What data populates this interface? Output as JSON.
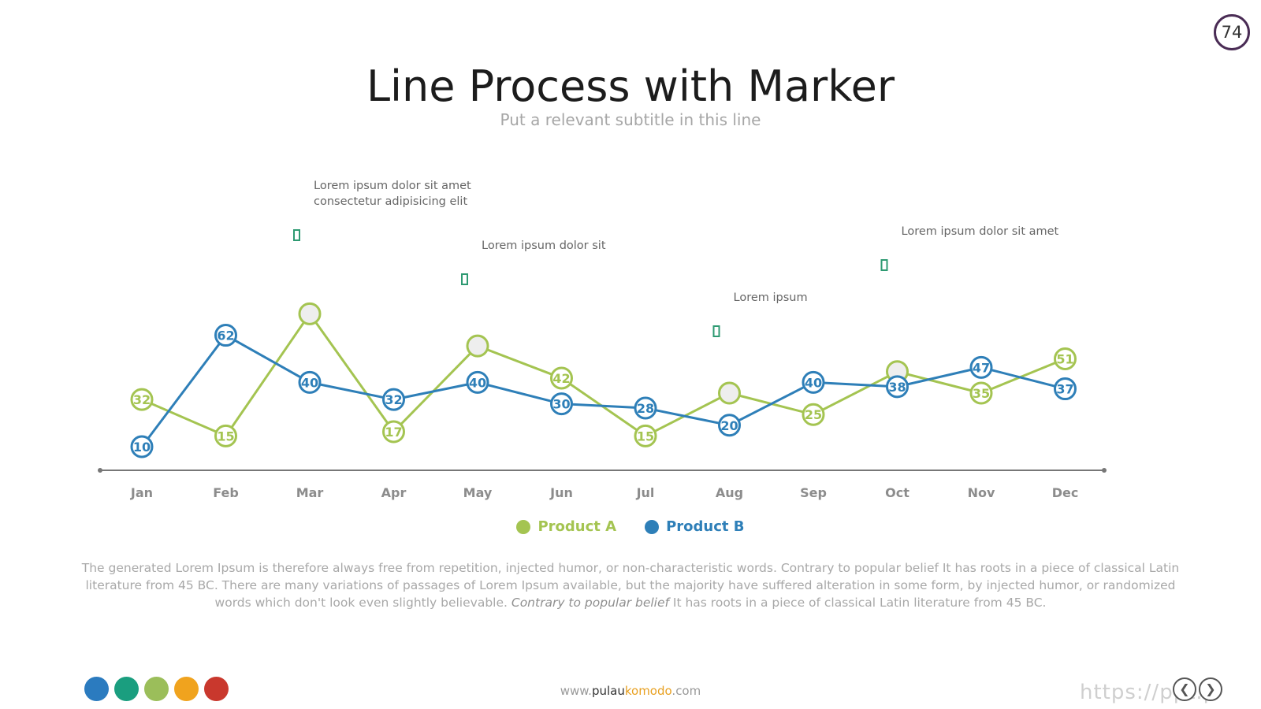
{
  "page_number": "74",
  "title": "Line Process with Marker",
  "subtitle": "Put a relevant subtitle in this line",
  "colors": {
    "product_a": "#a4c451",
    "product_b": "#2e7fb8",
    "callout": "#2e9a72",
    "axis": "#777777"
  },
  "chart_data": {
    "type": "line",
    "categories": [
      "Jan",
      "Feb",
      "Mar",
      "Apr",
      "May",
      "Jun",
      "Jul",
      "Aug",
      "Sep",
      "Oct",
      "Nov",
      "Dec"
    ],
    "series": [
      {
        "name": "Product A",
        "values": [
          32,
          15,
          72,
          17,
          57,
          42,
          15,
          35,
          25,
          45,
          35,
          51
        ],
        "shown_labels": [
          true,
          true,
          false,
          true,
          false,
          true,
          true,
          false,
          true,
          false,
          true,
          true
        ]
      },
      {
        "name": "Product B",
        "values": [
          10,
          62,
          40,
          32,
          40,
          30,
          28,
          20,
          40,
          38,
          47,
          37
        ],
        "shown_labels": [
          true,
          true,
          true,
          true,
          true,
          true,
          true,
          true,
          true,
          true,
          true,
          true
        ]
      }
    ],
    "annotations": [
      {
        "category": "Mar",
        "lines": [
          "Lorem ipsum dolor sit amet",
          "consectetur adipisicing elit"
        ]
      },
      {
        "category": "May",
        "lines": [
          "Lorem ipsum dolor sit"
        ]
      },
      {
        "category": "Aug",
        "lines": [
          "Lorem ipsum"
        ]
      },
      {
        "category": "Oct",
        "lines": [
          "Lorem ipsum dolor sit amet"
        ]
      }
    ],
    "grid": false,
    "legend": "bottom-center"
  },
  "body": {
    "text1": "The generated Lorem Ipsum is therefore always free from repetition, injected humor, or non-characteristic words. Contrary to popular belief It has roots in a piece of classical Latin literature from 45 BC. There are many variations of passages of Lorem Ipsum available, but the majority have suffered alteration in some form, by injected humor, or randomized words which don't look even slightly believable. ",
    "italic": "Contrary to popular belief",
    "text2": " It has roots in a piece of classical Latin literature from 45 BC."
  },
  "palette": [
    "#2b7bbf",
    "#1a9e7f",
    "#9bbe5a",
    "#f0a31e",
    "#c9382d"
  ],
  "footer": {
    "prefix": "www.",
    "brand_a": "pulau",
    "brand_b": "komodo",
    "suffix": ".com"
  },
  "watermark": "https://ppt.p",
  "nav": {
    "prev_icon": "chevron-left-icon",
    "next_icon": "chevron-right-icon"
  }
}
